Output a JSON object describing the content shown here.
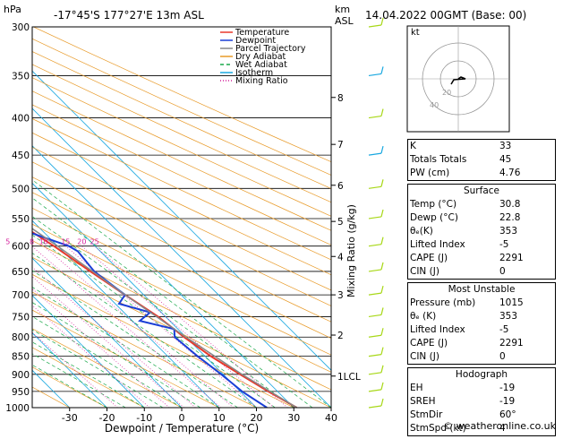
{
  "header": {
    "location": "-17°45'S  177°27'E  13m  ASL",
    "datetime": "14.04.2022  00GMT  (Base: 00)"
  },
  "axes": {
    "y_left_title": "hPa",
    "y_right_title_km": "km",
    "y_right_title_asl": "ASL",
    "x_title": "Dewpoint / Temperature (°C)",
    "mixing_title": "Mixing Ratio (g/kg)"
  },
  "legend": [
    "Temperature",
    "Dewpoint",
    "Parcel Trajectory",
    "Dry Adiabat",
    "Wet Adiabat",
    "Isotherm",
    "Mixing Ratio"
  ],
  "colors": {
    "temperature": "#e8382a",
    "dewpoint": "#1a3fd6",
    "parcel": "#888888",
    "dry_adiabat": "#e89a28",
    "wet_adiabat": "#1aa84a",
    "isotherm": "#1aa8e0",
    "mixing_ratio": "#d4209c",
    "wind": "#a8d818"
  },
  "chart_data": {
    "type": "line",
    "pressure_levels": [
      300,
      350,
      400,
      450,
      500,
      550,
      600,
      650,
      700,
      750,
      800,
      850,
      900,
      950,
      1000
    ],
    "pressure_labels": [
      "300",
      "350",
      "400",
      "450",
      "500",
      "550",
      "600",
      "650",
      "700",
      "750",
      "800",
      "850",
      "900",
      "950",
      "1000"
    ],
    "temp_ticks": [
      -30,
      -20,
      -10,
      0,
      10,
      20,
      30,
      40
    ],
    "temp_tick_labels": [
      "-30",
      "-20",
      "-10",
      "0",
      "10",
      "20",
      "30",
      "40"
    ],
    "x_range": [
      -40,
      40
    ],
    "height_km": [
      {
        "km": 1,
        "label": "1LCL",
        "p": 905
      },
      {
        "km": 2,
        "label": "2",
        "p": 795
      },
      {
        "km": 3,
        "label": "3",
        "p": 700
      },
      {
        "km": 4,
        "label": "4",
        "p": 620
      },
      {
        "km": 5,
        "label": "5",
        "p": 555
      },
      {
        "km": 6,
        "label": "6",
        "p": 495
      },
      {
        "km": 7,
        "label": "7",
        "p": 435
      },
      {
        "km": 8,
        "label": "8",
        "p": 375
      }
    ],
    "mixing_ratios": [
      1,
      2,
      3,
      4,
      5,
      8,
      10,
      15,
      20,
      25
    ],
    "mixing_labels": [
      "1",
      "2",
      "3",
      "4",
      "5",
      "8",
      "10",
      "15",
      "20",
      "25"
    ],
    "series": [
      {
        "name": "Temperature",
        "points": [
          [
            1000,
            30.8
          ],
          [
            950,
            27.5
          ],
          [
            900,
            24.5
          ],
          [
            850,
            21.5
          ],
          [
            800,
            19.5
          ],
          [
            750,
            18
          ],
          [
            700,
            15
          ],
          [
            650,
            12
          ],
          [
            600,
            9
          ],
          [
            550,
            5
          ],
          [
            500,
            0
          ],
          [
            450,
            -5
          ],
          [
            400,
            -10
          ],
          [
            350,
            -16
          ],
          [
            300,
            -24
          ]
        ]
      },
      {
        "name": "Dewpoint",
        "points": [
          [
            1000,
            22.8
          ],
          [
            950,
            20.5
          ],
          [
            900,
            19.5
          ],
          [
            850,
            18
          ],
          [
            800,
            17
          ],
          [
            780,
            19
          ],
          [
            760,
            12
          ],
          [
            740,
            17
          ],
          [
            720,
            11
          ],
          [
            700,
            15
          ],
          [
            650,
            13
          ],
          [
            610,
            14
          ],
          [
            600,
            13
          ],
          [
            560,
            2
          ],
          [
            540,
            -1
          ],
          [
            510,
            2
          ],
          [
            500,
            -13
          ],
          [
            480,
            -3
          ],
          [
            460,
            -10
          ],
          [
            450,
            -7
          ],
          [
            440,
            -3
          ],
          [
            430,
            -18
          ],
          [
            400,
            -5
          ],
          [
            390,
            -10
          ],
          [
            380,
            -43
          ],
          [
            350,
            -35
          ],
          [
            300,
            -45
          ]
        ]
      },
      {
        "name": "Parcel Trajectory",
        "points": [
          [
            1000,
            30.8
          ],
          [
            900,
            25
          ],
          [
            800,
            20
          ],
          [
            700,
            15
          ],
          [
            600,
            10
          ],
          [
            500,
            3
          ],
          [
            450,
            -1
          ],
          [
            400,
            -5
          ],
          [
            350,
            -11
          ],
          [
            300,
            -19
          ]
        ]
      }
    ]
  },
  "hodograph": {
    "label": "kt",
    "rings": [
      "20",
      "40"
    ]
  },
  "indices": [
    {
      "label": "K",
      "value": "33"
    },
    {
      "label": "Totals Totals",
      "value": "45"
    },
    {
      "label": "PW (cm)",
      "value": "4.76"
    }
  ],
  "surface": {
    "title": "Surface",
    "rows": [
      {
        "label": "Temp (°C)",
        "value": "30.8"
      },
      {
        "label": "Dewp (°C)",
        "value": "22.8"
      },
      {
        "label": "θₑ(K)",
        "value": "353"
      },
      {
        "label": "Lifted Index",
        "value": "-5"
      },
      {
        "label": "CAPE (J)",
        "value": "2291"
      },
      {
        "label": "CIN (J)",
        "value": "0"
      }
    ]
  },
  "most_unstable": {
    "title": "Most Unstable",
    "rows": [
      {
        "label": "Pressure (mb)",
        "value": "1015"
      },
      {
        "label": "θₑ (K)",
        "value": "353"
      },
      {
        "label": "Lifted Index",
        "value": "-5"
      },
      {
        "label": "CAPE (J)",
        "value": "2291"
      },
      {
        "label": "CIN (J)",
        "value": "0"
      }
    ]
  },
  "hodograph_table": {
    "title": "Hodograph",
    "rows": [
      {
        "label": "EH",
        "value": "-19"
      },
      {
        "label": "SREH",
        "value": "-19"
      },
      {
        "label": "StmDir",
        "value": "60°"
      },
      {
        "label": "StmSpd (kt)",
        "value": "4"
      }
    ]
  },
  "footer": "© weatheronline.co.uk"
}
